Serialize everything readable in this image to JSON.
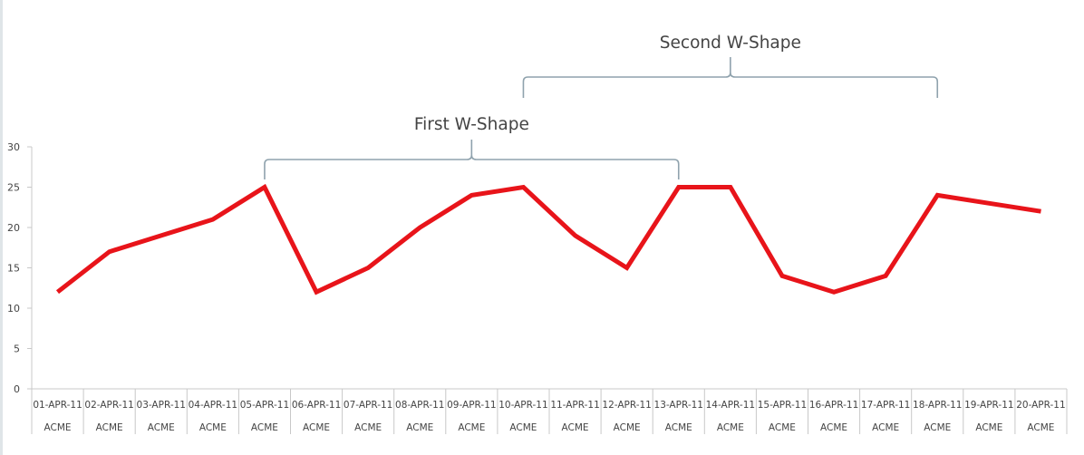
{
  "chart_data": {
    "type": "line",
    "title": "",
    "xlabel": "",
    "ylabel": "",
    "ylim": [
      0,
      30
    ],
    "yticks": [
      0,
      5,
      10,
      15,
      20,
      25,
      30
    ],
    "grid": false,
    "legend": null,
    "categories": [
      "01-APR-11",
      "02-APR-11",
      "03-APR-11",
      "04-APR-11",
      "05-APR-11",
      "06-APR-11",
      "07-APR-11",
      "08-APR-11",
      "09-APR-11",
      "10-APR-11",
      "11-APR-11",
      "12-APR-11",
      "13-APR-11",
      "14-APR-11",
      "15-APR-11",
      "16-APR-11",
      "17-APR-11",
      "18-APR-11",
      "19-APR-11",
      "20-APR-11"
    ],
    "category_group_labels": [
      "ACME",
      "ACME",
      "ACME",
      "ACME",
      "ACME",
      "ACME",
      "ACME",
      "ACME",
      "ACME",
      "ACME",
      "ACME",
      "ACME",
      "ACME",
      "ACME",
      "ACME",
      "ACME",
      "ACME",
      "ACME",
      "ACME",
      "ACME"
    ],
    "series": [
      {
        "name": "ACME",
        "color": "#e8141a",
        "values": [
          12,
          17,
          19,
          21,
          25,
          12,
          15,
          20,
          24,
          25,
          19,
          15,
          25,
          25,
          14,
          12,
          14,
          24,
          23,
          22
        ]
      }
    ],
    "annotations": [
      {
        "text": "First W-Shape",
        "from": "05-APR-11",
        "to": "13-APR-11",
        "type": "brace"
      },
      {
        "text": "Second W-Shape",
        "from": "10-APR-11",
        "to": "18-APR-11",
        "type": "brace"
      }
    ]
  },
  "colors": {
    "line": "#e8141a",
    "axis": "#c8c8c8",
    "brace": "#8fa2ad",
    "text": "#444444"
  }
}
